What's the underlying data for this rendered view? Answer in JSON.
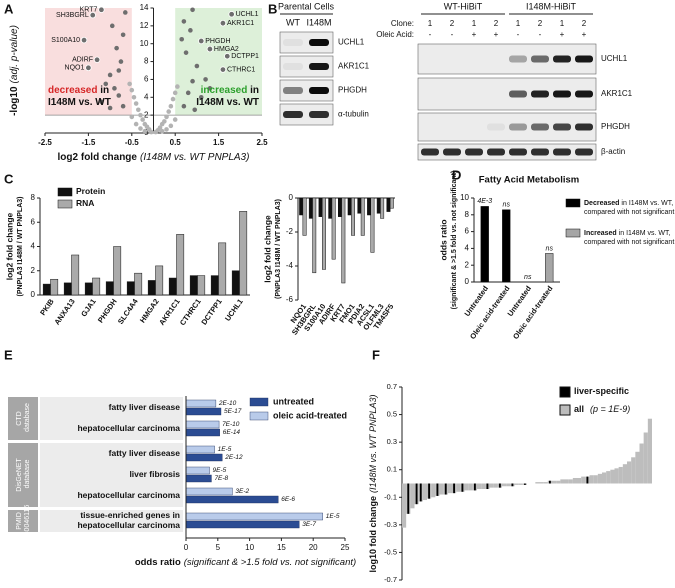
{
  "panel_labels": [
    "A",
    "B",
    "C",
    "D",
    "E",
    "F"
  ],
  "blots": {
    "parental": {
      "title": "Parental Cells",
      "lanes": [
        "WT",
        "I148M"
      ],
      "bands": [
        "UCHL1",
        "AKR1C1",
        "PHGDH",
        "α-tubulin"
      ]
    },
    "hibit": {
      "groups": [
        "WT-HiBiT",
        "I148M-HiBiT"
      ],
      "row_labels": [
        "Clone:",
        "Oleic Acid:"
      ],
      "clone": [
        "1",
        "2",
        "1",
        "2",
        "1",
        "2",
        "1",
        "2"
      ],
      "oleic": [
        "-",
        "-",
        "+",
        "+",
        "-",
        "-",
        "+",
        "+"
      ],
      "bands": [
        "UCHL1",
        "AKR1C1",
        "PHGDH",
        "β-actin"
      ]
    }
  },
  "chart_data": [
    {
      "type": "scatter",
      "xlabel": "log2 fold change",
      "xlabel_detail": "(I148M vs. WT PNPLA3)",
      "ylabel": "-log10",
      "ylabel_detail": "(adj. p-value)",
      "xlim": [
        -2.5,
        2.5
      ],
      "xticks": [
        -2.5,
        -1.5,
        -0.5,
        0.5,
        1.5,
        2.5
      ],
      "ylim": [
        0,
        14
      ],
      "yticks": [
        0,
        2,
        4,
        6,
        8,
        10,
        12,
        14
      ],
      "region_colors": [
        "#f9dede",
        "#ddf0d9"
      ],
      "annotations": [
        {
          "lines": [
            "decreased in",
            "I148M vs. WT"
          ],
          "color": "#d62728"
        },
        {
          "lines": [
            "increased in",
            "I148M vs. WT"
          ],
          "color": "#2ca02c"
        }
      ],
      "series": [
        {
          "color": "#b3b3b3",
          "x": [
            -0.05,
            0.05,
            -0.1,
            0.1,
            -0.15,
            0.15,
            -0.2,
            0.2,
            -0.25,
            0.25,
            -0.3,
            0.3,
            -0.35,
            0.35,
            -0.4,
            0.4,
            -0.45,
            0.45,
            -0.5,
            0.5,
            -0.55,
            0.55,
            -0.3,
            0.3,
            -0.4,
            0.4,
            -0.5,
            0.5,
            -0.2,
            0.2
          ],
          "y": [
            0.1,
            0.1,
            0.4,
            0.3,
            0.7,
            0.6,
            1.0,
            1.0,
            1.5,
            1.3,
            2.0,
            1.8,
            2.6,
            2.4,
            3.3,
            3.0,
            4.0,
            3.8,
            4.8,
            4.5,
            5.5,
            5.2,
            0.5,
            0.4,
            1.0,
            0.8,
            1.8,
            1.5,
            0.2,
            0.2
          ]
        },
        {
          "color": "#6e6e6e",
          "x": [
            -0.7,
            -0.8,
            -0.9,
            -1.0,
            -0.75,
            -0.85,
            -1.1,
            -1.2,
            -0.7,
            -0.95,
            -1.0,
            -0.8,
            0.7,
            0.8,
            0.9,
            1.0,
            0.75,
            0.85,
            1.1,
            1.2,
            0.7,
            0.95,
            1.3,
            0.9,
            -0.65,
            0.65
          ],
          "y": [
            3.0,
            4.2,
            5.0,
            6.5,
            8.0,
            9.5,
            5.5,
            3.5,
            11.0,
            12.0,
            2.8,
            7.0,
            3.0,
            4.5,
            5.8,
            7.5,
            9.0,
            11.5,
            4.0,
            6.0,
            12.5,
            2.6,
            5.0,
            13.8,
            13.5,
            10.5
          ]
        }
      ],
      "labeled_points": [
        {
          "label": "KRT7",
          "x": -1.2,
          "y": 13.8
        },
        {
          "label": "SH3BGRL",
          "x": -1.4,
          "y": 13.2
        },
        {
          "label": "S100A10",
          "x": -1.6,
          "y": 10.4
        },
        {
          "label": "ADIRF",
          "x": -1.3,
          "y": 8.2
        },
        {
          "label": "NQO1",
          "x": -1.5,
          "y": 7.3
        },
        {
          "label": "UCHL1",
          "x": 1.8,
          "y": 13.3
        },
        {
          "label": "AKR1C1",
          "x": 1.6,
          "y": 12.3
        },
        {
          "label": "PHGDH",
          "x": 1.1,
          "y": 10.3
        },
        {
          "label": "HMGA2",
          "x": 1.3,
          "y": 9.4
        },
        {
          "label": "DCTPP1",
          "x": 1.7,
          "y": 8.6
        },
        {
          "label": "CTHRC1",
          "x": 1.6,
          "y": 7.1
        }
      ]
    },
    {
      "type": "bar",
      "ylabel": [
        "log2 fold change",
        "(PNPLA3 I148M / WT PNPLA3)"
      ],
      "categories": [
        "PKIB",
        "ANXA13",
        "GJA1",
        "PHGDH",
        "SLC4A4",
        "HMGA2",
        "AKR1C1",
        "CTHRC1",
        "DCTPP1",
        "UCHL1"
      ],
      "ylim": [
        0,
        8
      ],
      "yticks": [
        0,
        2,
        4,
        6,
        8
      ],
      "legend": true,
      "series": [
        {
          "name": "Protein",
          "color": "#111111",
          "values": [
            0.9,
            1.0,
            1.0,
            1.1,
            1.1,
            1.2,
            1.4,
            1.6,
            1.6,
            2.0
          ]
        },
        {
          "name": "RNA",
          "color": "#aaaaaa",
          "values": [
            1.3,
            3.3,
            1.4,
            4.0,
            1.8,
            2.4,
            5.0,
            1.6,
            4.3,
            6.9
          ]
        }
      ]
    },
    {
      "type": "bar",
      "ylabel": [
        "log2 fold change",
        "(PNPLA3 I148M / WT PNPLA3)"
      ],
      "categories": [
        "NQO1",
        "SH3BGRL",
        "S100A10",
        "ADIRF",
        "KRT7",
        "FMO1",
        "PDIA2",
        "ACSL1",
        "OLFML3",
        "TM4SF5"
      ],
      "ylim": [
        -6,
        0
      ],
      "yticks": [
        0,
        -2,
        -4,
        -6
      ],
      "legend": false,
      "series": [
        {
          "name": "Protein",
          "color": "#111111",
          "values": [
            -1.0,
            -1.2,
            -1.1,
            -1.2,
            -1.1,
            -1.0,
            -0.9,
            -1.0,
            -0.9,
            -0.8
          ]
        },
        {
          "name": "RNA",
          "color": "#aaaaaa",
          "values": [
            -2.2,
            -4.4,
            -4.2,
            -3.6,
            -5.0,
            -2.2,
            -2.2,
            -3.2,
            -1.2,
            -0.6
          ]
        }
      ]
    },
    {
      "type": "bar",
      "title": "Fatty Acid Metabolism",
      "ylabel": [
        "odds ratio",
        "(significant & >1.5 fold vs. not significant)"
      ],
      "categories": [
        "Untreated",
        "Oleic acid-treated",
        "Untreated",
        "Oleic acid-treated"
      ],
      "ylim": [
        0,
        10
      ],
      "yticks": [
        0,
        2,
        4,
        6,
        8,
        10
      ],
      "legend": true,
      "series": [
        {
          "name": "Decreased",
          "detail": [
            "in I148M vs. WT,",
            "compared with not significant"
          ],
          "color": "#000000",
          "values": [
            9.0,
            8.6,
            null,
            null
          ],
          "p_labels": [
            "4E-3",
            "ns",
            null,
            null
          ]
        },
        {
          "name": "Increased",
          "detail": [
            "in I148M vs. WT,",
            "compared with not significant"
          ],
          "color": "#a6a6a6",
          "values": [
            null,
            null,
            0,
            3.4
          ],
          "p_labels": [
            null,
            null,
            "ns",
            "ns"
          ]
        }
      ]
    },
    {
      "type": "barh",
      "xlabel": "odds ratio",
      "xlabel_detail": "(significant & >1.5 fold vs. not significant)",
      "categories": [
        "fatty liver disease",
        "hepatocellular carcinoma",
        "fatty liver disease",
        "liver fibrosis",
        "hepatocellular carcinoma",
        "tissue-enriched genes in hepatocellular carcinoma"
      ],
      "category_groups": [
        "CTD database",
        "CTD database",
        "DisGeNET database",
        "DisGeNET database",
        "DisGeNET database",
        "PMID 30046116"
      ],
      "xlim": [
        0,
        25
      ],
      "xticks": [
        0,
        5,
        10,
        15,
        20,
        25
      ],
      "series": [
        {
          "name": "untreated",
          "color": "#2b4c93",
          "values": [
            5.5,
            5.3,
            5.7,
            4.0,
            14.5,
            17.8
          ],
          "p_labels": [
            "5E-17",
            "6E-14",
            "2E-12",
            "7E-8",
            "6E-6",
            "3E-7"
          ]
        },
        {
          "name": "oleic acid-treated",
          "color": "#b9cbea",
          "values": [
            4.7,
            5.2,
            4.5,
            3.7,
            7.3,
            21.5
          ],
          "p_labels": [
            "2E-10",
            "7E-10",
            "1E-5",
            "9E-5",
            "3E-2",
            "1E-5"
          ]
        }
      ]
    },
    {
      "type": "bar",
      "ylabel": "log10 fold change",
      "ylabel_detail": "(I148M vs. WT PNPLA3)",
      "ylim": [
        -0.7,
        0.7
      ],
      "yticks": [
        0.7,
        0.5,
        0.3,
        0.1,
        -0.1,
        -0.3,
        -0.5,
        -0.7
      ],
      "series": [
        {
          "name": "liver-specific",
          "color": "#000000",
          "values": [
            null,
            -0.22,
            null,
            -0.15,
            -0.13,
            null,
            -0.11,
            null,
            -0.09,
            null,
            -0.08,
            null,
            -0.07,
            null,
            -0.06,
            null,
            null,
            -0.05,
            null,
            null,
            -0.04,
            null,
            null,
            -0.03,
            null,
            null,
            -0.02,
            null,
            null,
            -0.01,
            null,
            null,
            null,
            null,
            null,
            0.02,
            null,
            null,
            null,
            null,
            null,
            null,
            null,
            null,
            0.05,
            null,
            null,
            null,
            null,
            null,
            null,
            null,
            null,
            null,
            null,
            null,
            null,
            null,
            null,
            null
          ]
        },
        {
          "name": "all",
          "detail": "(p = 1E-9)",
          "color": "#bdbdbd",
          "values": [
            -0.32,
            -0.22,
            -0.18,
            -0.15,
            -0.13,
            -0.12,
            -0.11,
            -0.1,
            -0.09,
            -0.08,
            -0.08,
            -0.07,
            -0.07,
            -0.06,
            -0.06,
            -0.05,
            -0.05,
            -0.05,
            -0.04,
            -0.04,
            -0.04,
            -0.03,
            -0.03,
            -0.03,
            -0.02,
            -0.02,
            -0.02,
            -0.01,
            -0.01,
            -0.01,
            0.0,
            0.0,
            0.01,
            0.01,
            0.01,
            0.02,
            0.02,
            0.02,
            0.03,
            0.03,
            0.03,
            0.04,
            0.04,
            0.05,
            0.05,
            0.06,
            0.06,
            0.07,
            0.08,
            0.09,
            0.1,
            0.11,
            0.12,
            0.14,
            0.16,
            0.19,
            0.23,
            0.29,
            0.37,
            0.47
          ]
        }
      ]
    }
  ]
}
